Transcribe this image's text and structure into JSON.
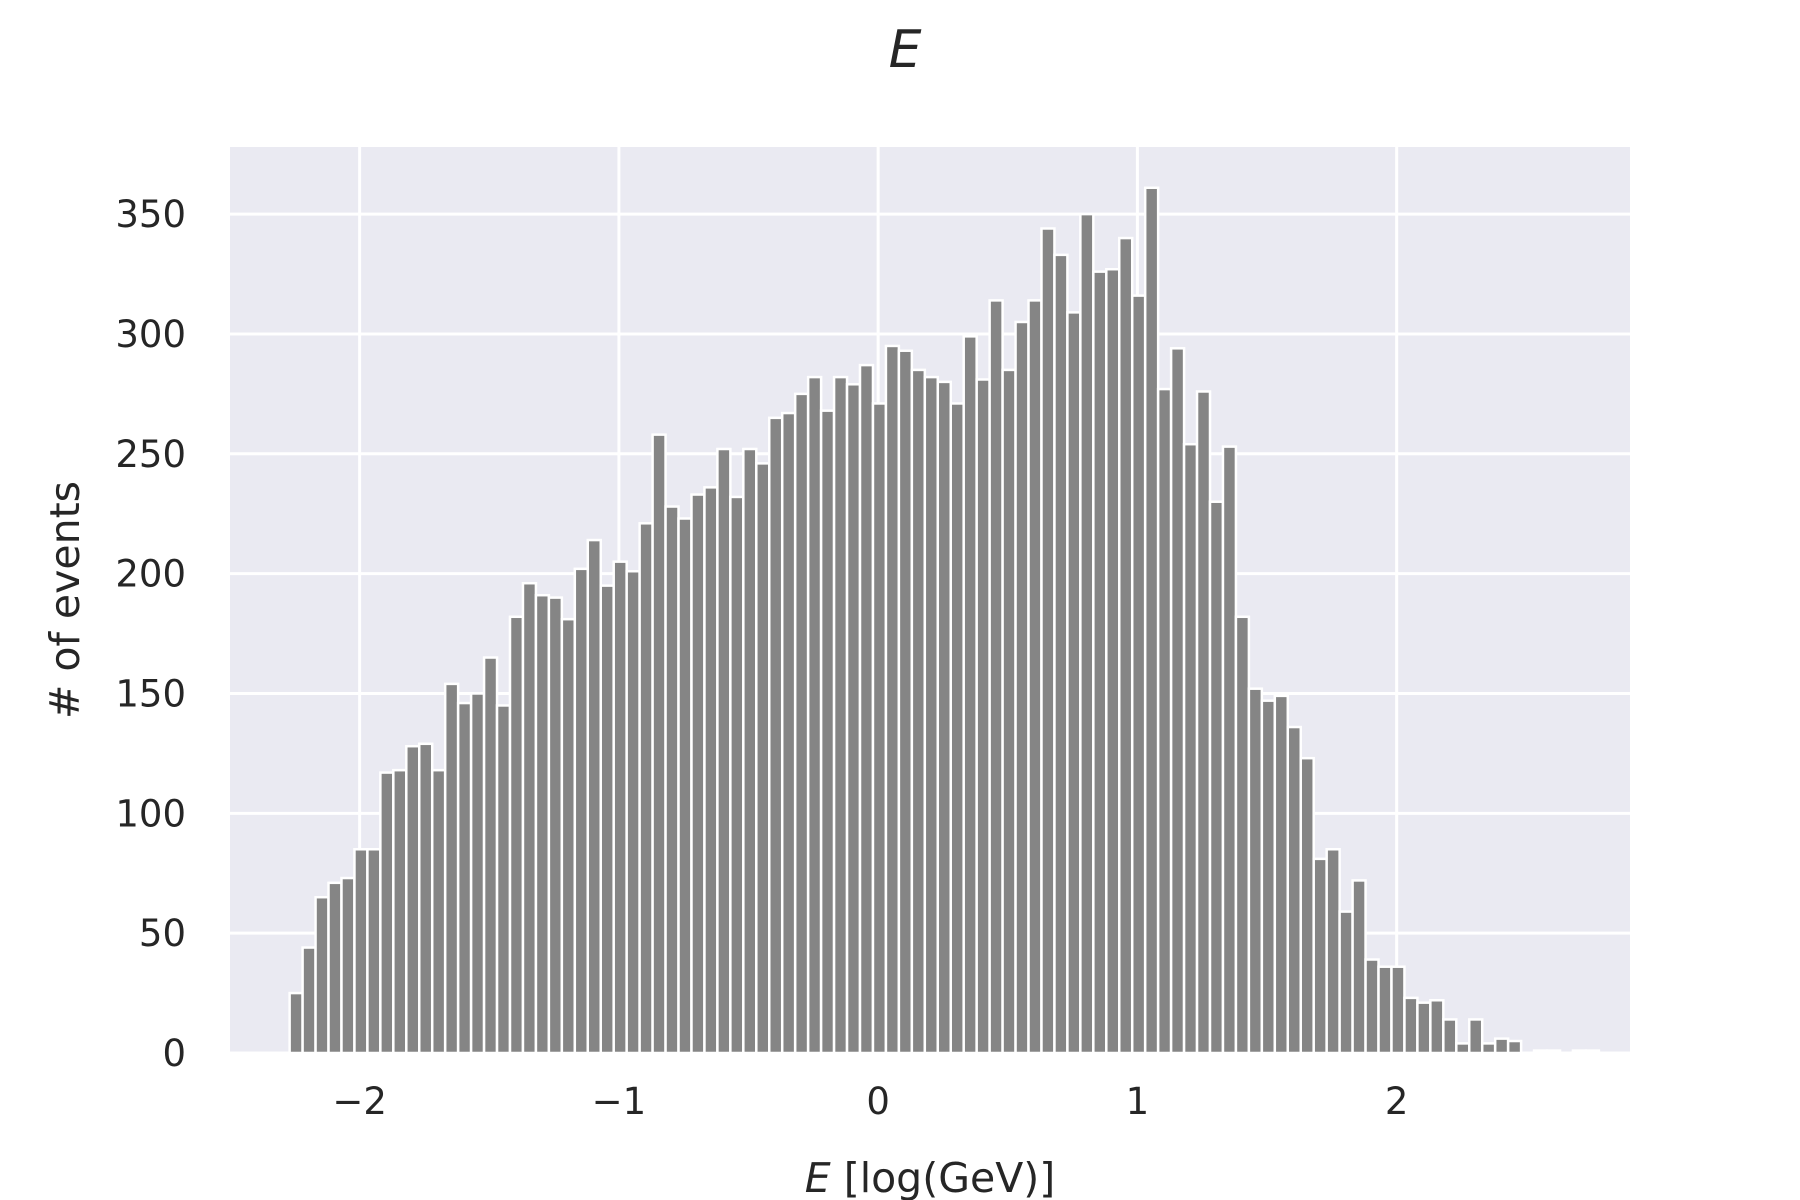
{
  "chart_data": {
    "type": "bar",
    "title": "E",
    "xlabel_symbol": "E",
    "xlabel_unit": " [log(GeV)]",
    "ylabel": "# of events",
    "xlim": [
      -2.5,
      2.9
    ],
    "ylim": [
      0,
      378
    ],
    "xticks": [
      -2,
      -1,
      0,
      1,
      2
    ],
    "xtick_labels": [
      "−2",
      "−1",
      "0",
      "1",
      "2"
    ],
    "yticks": [
      0,
      50,
      100,
      150,
      200,
      250,
      300,
      350
    ],
    "ytick_labels": [
      "0",
      "50",
      "100",
      "150",
      "200",
      "250",
      "300",
      "350"
    ],
    "bin_start": -2.27,
    "bin_width": 0.05,
    "values": [
      25,
      44,
      65,
      71,
      73,
      85,
      85,
      117,
      118,
      128,
      129,
      118,
      154,
      146,
      150,
      165,
      145,
      182,
      196,
      191,
      190,
      181,
      202,
      214,
      195,
      205,
      201,
      221,
      258,
      228,
      223,
      233,
      236,
      252,
      232,
      252,
      246,
      265,
      267,
      275,
      282,
      268,
      282,
      279,
      287,
      271,
      295,
      293,
      285,
      282,
      280,
      271,
      299,
      281,
      314,
      285,
      305,
      314,
      344,
      333,
      309,
      350,
      326,
      327,
      340,
      316,
      361,
      277,
      294,
      254,
      276,
      230,
      253,
      182,
      152,
      147,
      149,
      136,
      123,
      81,
      85,
      59,
      72,
      39,
      36,
      36,
      23,
      21,
      22,
      14,
      4,
      14,
      4,
      6,
      5,
      0,
      1,
      1,
      0,
      1,
      1
    ],
    "grid": true,
    "background": "#eaeaf2",
    "bar_color": "#858585",
    "edge_color": "#ffffff"
  }
}
